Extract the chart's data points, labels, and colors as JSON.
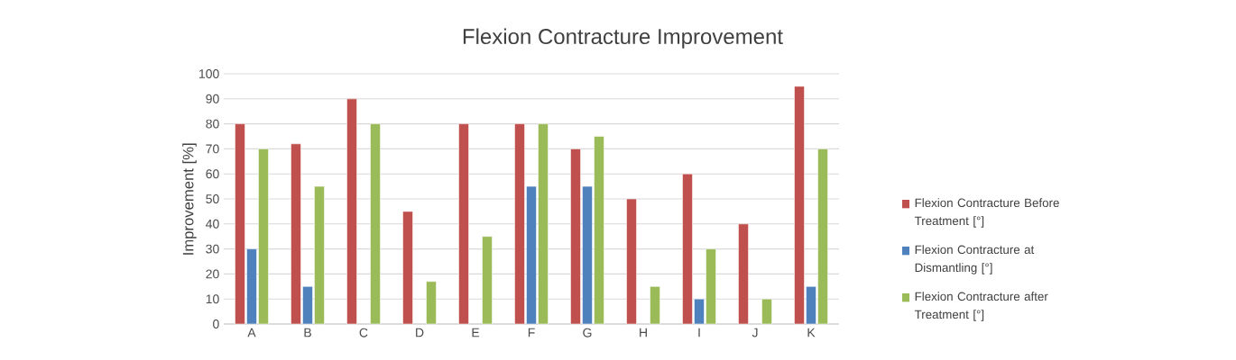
{
  "chart_data": {
    "type": "bar",
    "title": "Flexion Contracture Improvement",
    "ylabel": "Improvement [%]",
    "categories": [
      "A",
      "B",
      "C",
      "D",
      "E",
      "F",
      "G",
      "H",
      "I",
      "J",
      "K"
    ],
    "series": [
      {
        "name": "Flexion Contracture Before Treatment [°]",
        "color": "#c0504d",
        "values": [
          80,
          72,
          90,
          45,
          80,
          80,
          70,
          50,
          60,
          40,
          95
        ]
      },
      {
        "name": "Flexion Contracture at Dismantling [°]",
        "color": "#4f81bd",
        "values": [
          30,
          15,
          null,
          null,
          null,
          55,
          55,
          null,
          10,
          null,
          15
        ]
      },
      {
        "name": "Flexion Contracture after Treatment [°]",
        "color": "#9bbb59",
        "values": [
          70,
          55,
          80,
          17,
          35,
          80,
          75,
          15,
          30,
          10,
          70
        ]
      }
    ],
    "ylim": [
      0,
      100
    ],
    "yticks": [
      0,
      10,
      20,
      30,
      40,
      50,
      60,
      70,
      80,
      90,
      100
    ],
    "grid": "y",
    "legend": "right"
  }
}
